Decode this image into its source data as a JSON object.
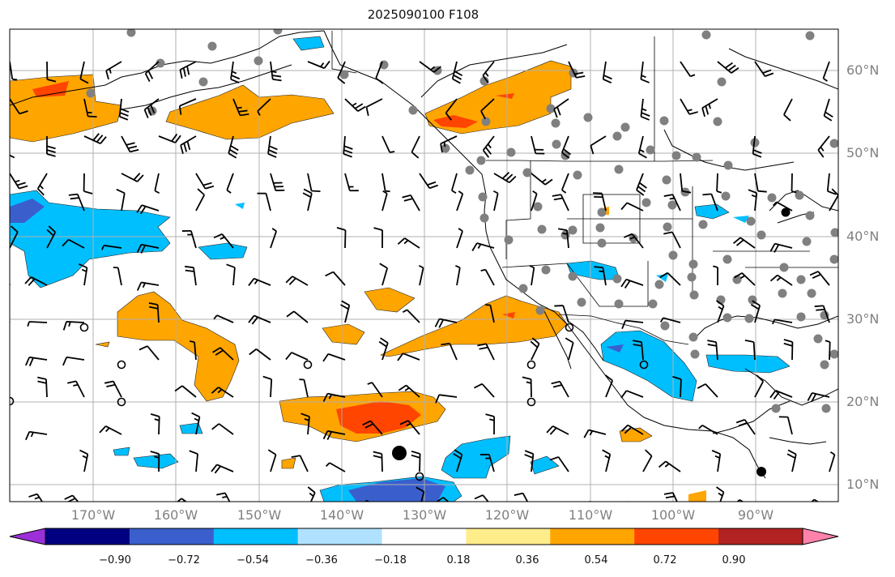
{
  "title": "2025090100 F108",
  "map": {
    "lat_labels": [
      "60°N",
      "50°N",
      "40°N",
      "30°N",
      "20°N",
      "10°N"
    ],
    "lon_labels": [
      "170°W",
      "160°W",
      "150°W",
      "140°W",
      "130°W",
      "120°W",
      "110°W",
      "100°W",
      "90°W"
    ],
    "colors": {
      "strong_pos": "#ff4500",
      "pos": "#ffa500",
      "neg": "#00bfff",
      "strong_neg": "#3a5fcd",
      "station": "#808080",
      "barb": "#000000",
      "coast": "#000000",
      "grid": "#b0b0b0"
    }
  },
  "colorbar": {
    "colors": [
      "#9b30d9",
      "#000080",
      "#3a5fcd",
      "#00bfff",
      "#b0e2ff",
      "#ffffff",
      "#ffec8b",
      "#ffa500",
      "#ff4500",
      "#b22222",
      "#ff82ab"
    ],
    "labels": [
      "−0.90",
      "−0.72",
      "−0.54",
      "−0.36",
      "−0.18",
      "0.18",
      "0.36",
      "0.54",
      "0.72",
      "0.90"
    ]
  }
}
